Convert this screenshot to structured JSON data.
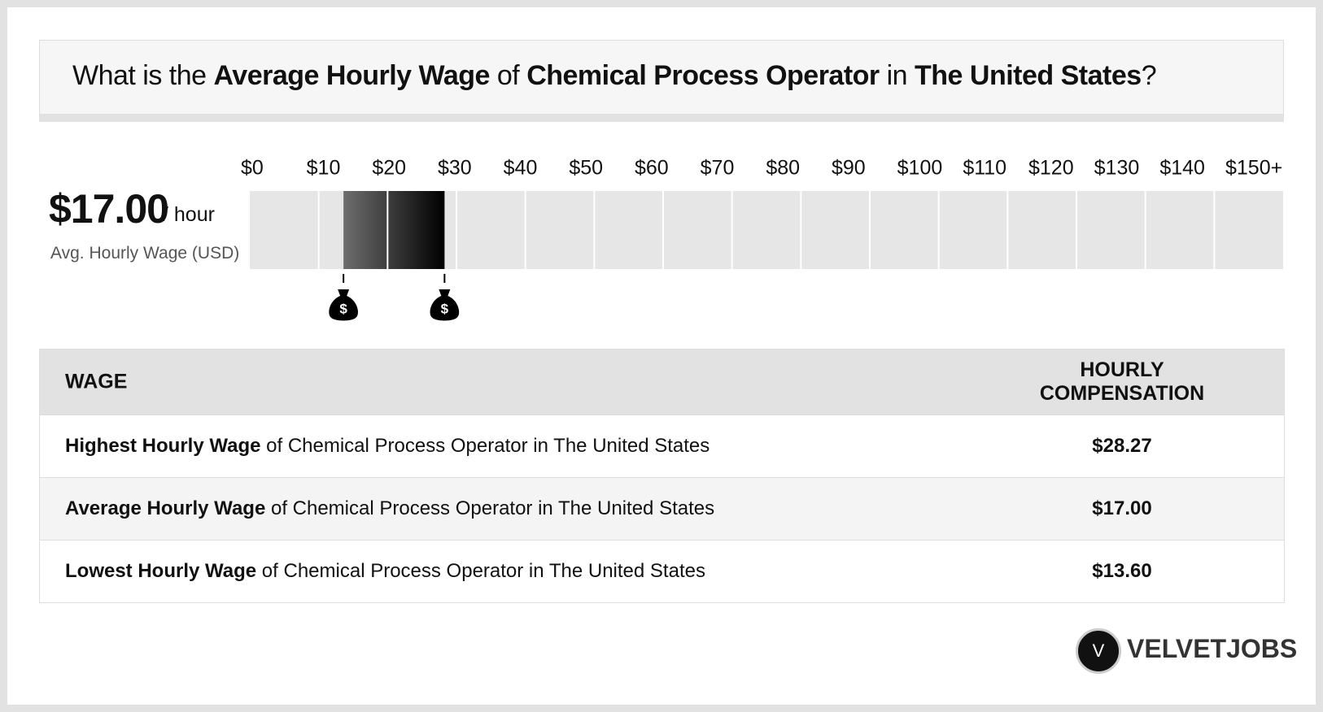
{
  "header": {
    "segments": [
      {
        "text": "What is the ",
        "bold": false
      },
      {
        "text": "Average Hourly Wage",
        "bold": true
      },
      {
        "text": " of ",
        "bold": false
      },
      {
        "text": "Chemical Process Operator",
        "bold": true
      },
      {
        "text": " in ",
        "bold": false
      },
      {
        "text": "The United States",
        "bold": true
      },
      {
        "text": "?",
        "bold": false
      }
    ]
  },
  "summary": {
    "value": "$17.00",
    "unit": "/ hour",
    "caption": "Avg. Hourly Wage (USD)"
  },
  "chart_data": {
    "type": "range",
    "xlim": [
      0,
      150
    ],
    "xticks": [
      {
        "value": 0,
        "label": "$0"
      },
      {
        "value": 10,
        "label": "$10"
      },
      {
        "value": 20,
        "label": "$20"
      },
      {
        "value": 30,
        "label": "$30"
      },
      {
        "value": 40,
        "label": "$40"
      },
      {
        "value": 50,
        "label": "$50"
      },
      {
        "value": 60,
        "label": "$60"
      },
      {
        "value": 70,
        "label": "$70"
      },
      {
        "value": 80,
        "label": "$80"
      },
      {
        "value": 90,
        "label": "$90"
      },
      {
        "value": 100,
        "label": "$100"
      },
      {
        "value": 110,
        "label": "$110"
      },
      {
        "value": 120,
        "label": "$120"
      },
      {
        "value": 130,
        "label": "$130"
      },
      {
        "value": 140,
        "label": "$140"
      },
      {
        "value": 150,
        "label": "$150+"
      }
    ],
    "low": 13.6,
    "high": 28.27,
    "colors": [
      "#6e6e6e",
      "#000000"
    ],
    "grid": true
  },
  "table": {
    "headers": [
      "WAGE",
      "HOURLY COMPENSATION"
    ],
    "rows": [
      {
        "bold": "Highest Hourly Wage",
        "text": " of Chemical Process Operator in The United States",
        "value": "$28.27"
      },
      {
        "bold": "Average Hourly Wage",
        "text": " of Chemical Process Operator in The United States",
        "value": "$17.00"
      },
      {
        "bold": "Lowest Hourly Wage",
        "text": " of Chemical Process Operator in The United States",
        "value": "$13.60"
      }
    ]
  },
  "logo": {
    "mark": "V",
    "name": "VELVETJOBS"
  }
}
